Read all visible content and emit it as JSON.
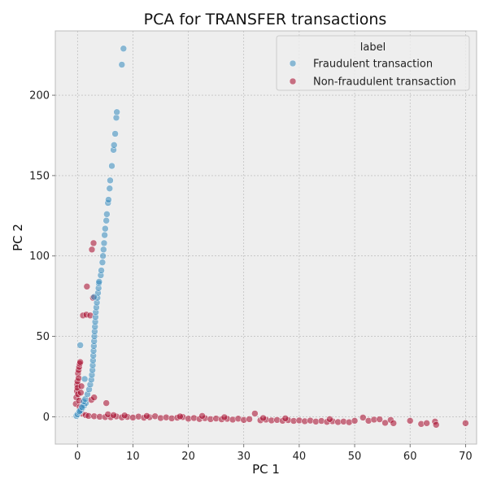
{
  "chart_data": {
    "type": "scatter",
    "title": "PCA for TRANSFER transactions",
    "xlabel": "PC 1",
    "ylabel": "PC 2",
    "xlim": [
      -4,
      72
    ],
    "ylim": [
      -17,
      240
    ],
    "xticks": [
      0,
      10,
      20,
      30,
      40,
      50,
      60,
      70
    ],
    "yticks": [
      0,
      50,
      100,
      150,
      200
    ],
    "grid": true,
    "legend": {
      "title": "label",
      "placement": "top-right"
    },
    "series": [
      {
        "name": "Fraudulent transaction",
        "color": "#348ABD",
        "points": [
          [
            -0.2,
            0.5
          ],
          [
            0.0,
            1.5
          ],
          [
            0.3,
            2.8
          ],
          [
            0.6,
            4.0
          ],
          [
            0.9,
            5.5
          ],
          [
            1.2,
            7.0
          ],
          [
            1.5,
            8.5
          ],
          [
            0.4,
            3.5
          ],
          [
            0.8,
            6.0
          ],
          [
            1.1,
            9.5
          ],
          [
            1.4,
            11.0
          ],
          [
            0.5,
            44.5
          ],
          [
            1.3,
            23.5
          ],
          [
            1.8,
            14.0
          ],
          [
            2.1,
            17.0
          ],
          [
            2.3,
            20.0
          ],
          [
            2.5,
            23.0
          ],
          [
            2.6,
            26.0
          ],
          [
            2.7,
            29.0
          ],
          [
            2.75,
            32.0
          ],
          [
            2.8,
            35.0
          ],
          [
            2.85,
            38.0
          ],
          [
            2.9,
            41.0
          ],
          [
            2.95,
            44.0
          ],
          [
            3.0,
            47.0
          ],
          [
            3.05,
            50.0
          ],
          [
            3.1,
            53.0
          ],
          [
            3.15,
            56.0
          ],
          [
            3.2,
            59.0
          ],
          [
            3.25,
            62.0
          ],
          [
            3.3,
            65.0
          ],
          [
            3.4,
            68.0
          ],
          [
            3.5,
            71.0
          ],
          [
            3.6,
            74.0
          ],
          [
            3.7,
            77.0
          ],
          [
            3.8,
            80.0
          ],
          [
            3.85,
            83.0
          ],
          [
            3.9,
            84.0
          ],
          [
            3.0,
            74.5
          ],
          [
            4.2,
            88.0
          ],
          [
            4.3,
            91.0
          ],
          [
            4.5,
            96.0
          ],
          [
            4.6,
            100.0
          ],
          [
            4.7,
            104.0
          ],
          [
            4.8,
            108.0
          ],
          [
            4.9,
            113.0
          ],
          [
            5.0,
            117.0
          ],
          [
            5.2,
            122.0
          ],
          [
            5.3,
            126.0
          ],
          [
            5.5,
            133.0
          ],
          [
            5.6,
            135.0
          ],
          [
            5.8,
            142.0
          ],
          [
            5.9,
            147.0
          ],
          [
            6.2,
            156.0
          ],
          [
            6.5,
            166.0
          ],
          [
            6.6,
            169.0
          ],
          [
            6.8,
            176.0
          ],
          [
            7.0,
            186.0
          ],
          [
            7.1,
            189.5
          ],
          [
            8.0,
            219.0
          ],
          [
            8.3,
            229.0
          ]
        ]
      },
      {
        "name": "Non-fraudulent transaction",
        "color": "#A60628",
        "points": [
          [
            -0.3,
            8.0
          ],
          [
            -0.2,
            12.0
          ],
          [
            -0.1,
            16.0
          ],
          [
            -0.05,
            20.0
          ],
          [
            0.0,
            22.0
          ],
          [
            0.1,
            27.0
          ],
          [
            0.2,
            29.0
          ],
          [
            0.3,
            31.0
          ],
          [
            0.4,
            33.0
          ],
          [
            0.5,
            34.0
          ],
          [
            0.0,
            18.0
          ],
          [
            0.2,
            24.0
          ],
          [
            0.1,
            14.0
          ],
          [
            0.3,
            10.0
          ],
          [
            0.4,
            6.0
          ],
          [
            0.6,
            15.0
          ],
          [
            0.7,
            19.0
          ],
          [
            1.0,
            63.0
          ],
          [
            1.6,
            63.5
          ],
          [
            2.3,
            63.0
          ],
          [
            1.7,
            81.0
          ],
          [
            2.6,
            104.0
          ],
          [
            2.9,
            108.0
          ],
          [
            2.8,
            74.0
          ],
          [
            5.2,
            8.5
          ],
          [
            2.5,
            10.5
          ],
          [
            3.0,
            12.0
          ],
          [
            0.8,
            2.0
          ],
          [
            1.5,
            1.0
          ],
          [
            2.0,
            0.5
          ],
          [
            3.0,
            0.3
          ],
          [
            4.0,
            0.0
          ],
          [
            5.0,
            -0.2
          ],
          [
            6.0,
            -0.3
          ],
          [
            7.0,
            0.2
          ],
          [
            8.0,
            -0.4
          ],
          [
            9.0,
            -0.1
          ],
          [
            10.0,
            -0.5
          ],
          [
            11.0,
            0.1
          ],
          [
            12.0,
            -0.6
          ],
          [
            13.0,
            -0.3
          ],
          [
            14.0,
            0.3
          ],
          [
            15.0,
            -0.8
          ],
          [
            16.0,
            -0.4
          ],
          [
            17.0,
            -1.0
          ],
          [
            18.0,
            -0.6
          ],
          [
            19.0,
            -0.2
          ],
          [
            20.0,
            -1.2
          ],
          [
            21.0,
            -0.8
          ],
          [
            22.0,
            -1.4
          ],
          [
            23.0,
            -0.9
          ],
          [
            24.0,
            -1.5
          ],
          [
            25.0,
            -1.1
          ],
          [
            26.0,
            -1.6
          ],
          [
            27.0,
            -1.3
          ],
          [
            28.0,
            -1.8
          ],
          [
            29.0,
            -1.2
          ],
          [
            30.0,
            -2.0
          ],
          [
            31.0,
            -1.5
          ],
          [
            32.0,
            2.0
          ],
          [
            33.0,
            -2.2
          ],
          [
            34.0,
            -1.8
          ],
          [
            35.0,
            -2.3
          ],
          [
            36.0,
            -2.0
          ],
          [
            37.0,
            -2.5
          ],
          [
            38.0,
            -2.1
          ],
          [
            39.0,
            -2.6
          ],
          [
            40.0,
            -2.3
          ],
          [
            41.0,
            -2.8
          ],
          [
            42.0,
            -2.4
          ],
          [
            43.0,
            -3.0
          ],
          [
            44.0,
            -2.6
          ],
          [
            45.0,
            -3.2
          ],
          [
            46.0,
            -2.8
          ],
          [
            47.0,
            -3.3
          ],
          [
            48.0,
            -3.0
          ],
          [
            49.0,
            -3.4
          ],
          [
            50.0,
            -2.5
          ],
          [
            51.5,
            -0.5
          ],
          [
            52.5,
            -2.5
          ],
          [
            53.5,
            -1.8
          ],
          [
            54.5,
            -1.6
          ],
          [
            55.5,
            -3.8
          ],
          [
            56.5,
            -2.0
          ],
          [
            57.0,
            -4.0
          ],
          [
            60.0,
            -2.5
          ],
          [
            62.0,
            -4.5
          ],
          [
            63.0,
            -4.0
          ],
          [
            64.5,
            -3.0
          ],
          [
            64.7,
            -5.0
          ],
          [
            70.0,
            -4.0
          ],
          [
            5.5,
            1.5
          ],
          [
            6.5,
            1.0
          ],
          [
            8.5,
            0.8
          ],
          [
            12.5,
            0.5
          ],
          [
            18.5,
            0.2
          ],
          [
            22.5,
            0.5
          ],
          [
            26.5,
            -0.3
          ],
          [
            33.5,
            -0.8
          ],
          [
            37.5,
            -1.0
          ],
          [
            45.5,
            -1.5
          ]
        ]
      }
    ]
  }
}
